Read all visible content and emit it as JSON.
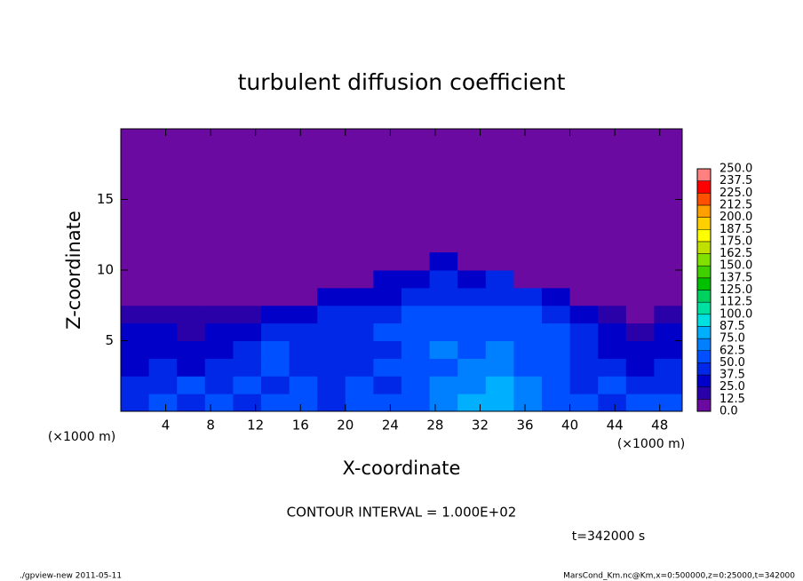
{
  "chart_data": {
    "type": "heatmap",
    "title": "turbulent diffusion coefficient",
    "x_label": "X-coordinate",
    "y_label": "Z-coordinate",
    "x_unit": "(×1000 m)",
    "y_unit": "(×1000 m)",
    "contour_note": "CONTOUR INTERVAL = 1.000E+02",
    "time_note": "t=342000 s",
    "footer_left": "./gpview-new  2011-05-11",
    "footer_right": "MarsCond_Km.nc@Km,x=0:500000,z=0:25000,t=342000",
    "xlim": [
      0,
      50
    ],
    "ylim": [
      0,
      20
    ],
    "xticks": [
      4,
      8,
      12,
      16,
      20,
      24,
      28,
      32,
      36,
      40,
      44,
      48
    ],
    "yticks": [
      5,
      10,
      15
    ],
    "x": [
      1.25,
      3.75,
      6.25,
      8.75,
      11.25,
      13.75,
      16.25,
      18.75,
      21.25,
      23.75,
      26.25,
      28.75,
      31.25,
      33.75,
      36.25,
      38.75,
      41.25,
      43.75,
      46.25,
      48.75
    ],
    "y": [
      0.625,
      1.875,
      3.125,
      4.375,
      5.625,
      6.875,
      8.125,
      9.375,
      10.625
    ],
    "values": [
      [
        45,
        50,
        40,
        55,
        45,
        60,
        50,
        45,
        55,
        50,
        60,
        70,
        75,
        80,
        70,
        60,
        50,
        45,
        55,
        50
      ],
      [
        40,
        45,
        50,
        40,
        55,
        45,
        50,
        40,
        50,
        45,
        55,
        65,
        70,
        75,
        65,
        55,
        45,
        50,
        45,
        40
      ],
      [
        35,
        40,
        30,
        45,
        40,
        50,
        40,
        45,
        45,
        50,
        55,
        60,
        70,
        70,
        60,
        55,
        45,
        40,
        35,
        40
      ],
      [
        30,
        35,
        25,
        30,
        45,
        50,
        45,
        40,
        40,
        45,
        50,
        65,
        60,
        65,
        55,
        50,
        45,
        35,
        30,
        35
      ],
      [
        25,
        30,
        20,
        25,
        30,
        40,
        45,
        40,
        45,
        50,
        55,
        60,
        55,
        60,
        55,
        50,
        40,
        25,
        20,
        25
      ],
      [
        20,
        15,
        15,
        20,
        20,
        25,
        35,
        40,
        45,
        45,
        50,
        55,
        50,
        55,
        50,
        45,
        35,
        15,
        10,
        15
      ],
      [
        5,
        5,
        5,
        5,
        5,
        5,
        10,
        30,
        35,
        35,
        40,
        45,
        40,
        45,
        40,
        30,
        5,
        5,
        5,
        5
      ],
      [
        0,
        0,
        0,
        0,
        0,
        0,
        0,
        0,
        10,
        25,
        30,
        40,
        35,
        40,
        10,
        0,
        0,
        0,
        0,
        0
      ],
      [
        0,
        0,
        0,
        0,
        0,
        0,
        0,
        0,
        0,
        0,
        10,
        30,
        5,
        0,
        0,
        0,
        0,
        0,
        0,
        0
      ]
    ],
    "colorbar_ticks": [
      {
        "value": 0,
        "label": "0.0"
      },
      {
        "value": 12.5,
        "label": "12.5"
      },
      {
        "value": 25,
        "label": "25.0"
      },
      {
        "value": 37.5,
        "label": "37.5"
      },
      {
        "value": 50,
        "label": "50.0"
      },
      {
        "value": 62.5,
        "label": "62.5"
      },
      {
        "value": 75,
        "label": "75.0"
      },
      {
        "value": 87.5,
        "label": "87.5"
      },
      {
        "value": 100,
        "label": "100.0"
      },
      {
        "value": 112.5,
        "label": "112.5"
      },
      {
        "value": 125,
        "label": "125.0"
      },
      {
        "value": 137.5,
        "label": "137.5"
      },
      {
        "value": 150,
        "label": "150.0"
      },
      {
        "value": 162.5,
        "label": "162.5"
      },
      {
        "value": 175,
        "label": "175.0"
      },
      {
        "value": 187.5,
        "label": "187.5"
      },
      {
        "value": 200,
        "label": "200.0"
      },
      {
        "value": 212.5,
        "label": "212.5"
      },
      {
        "value": 225,
        "label": "225.0"
      },
      {
        "value": 237.5,
        "label": "237.5"
      },
      {
        "value": 250,
        "label": "250.0"
      }
    ],
    "colors": [
      "#6a0aa0",
      "#2a00a8",
      "#0000c8",
      "#0028e6",
      "#0050ff",
      "#0080ff",
      "#00b0ff",
      "#00e0e0",
      "#00e0a0",
      "#00d060",
      "#00c000",
      "#40d000",
      "#80e000",
      "#c0e000",
      "#ffff00",
      "#ffd000",
      "#ffa000",
      "#ff5000",
      "#ff0000",
      "#ff8080"
    ]
  }
}
